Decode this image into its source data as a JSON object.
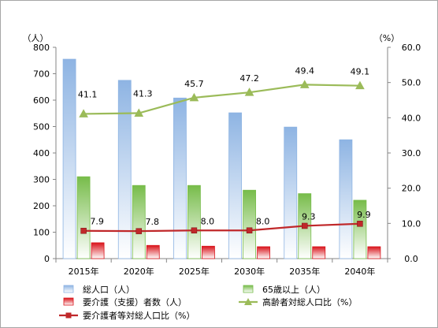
{
  "chart_data": {
    "type": "bar",
    "categories": [
      "2015年",
      "2020年",
      "2025年",
      "2030年",
      "2035年",
      "2040年"
    ],
    "y_left": {
      "unit": "（人）",
      "range": [
        0,
        800
      ],
      "ticks": [
        "0",
        "100",
        "200",
        "300",
        "400",
        "500",
        "600",
        "700",
        "800"
      ]
    },
    "y_right": {
      "unit": "（%）",
      "range": [
        0,
        60
      ],
      "ticks": [
        "0.0",
        "10.0",
        "20.0",
        "30.0",
        "40.0",
        "50.0",
        "60.0"
      ]
    },
    "series": [
      {
        "name": "総人口（人）",
        "kind": "bar",
        "axis": "left",
        "color": "#8eb4e3",
        "values": [
          755,
          675,
          608,
          552,
          498,
          450
        ]
      },
      {
        "name": "65歳以上（人）",
        "kind": "bar",
        "axis": "left",
        "color": "#77bc4a",
        "values": [
          310,
          277,
          277,
          259,
          246,
          221
        ]
      },
      {
        "name": "要介護（支援）者数（人）",
        "kind": "bar",
        "axis": "left",
        "color": "#d9141b",
        "values": [
          60,
          50,
          47,
          45,
          45,
          45
        ]
      },
      {
        "name": "高齢者対総人口比（%）",
        "kind": "line",
        "axis": "right",
        "color": "#9bbb59",
        "marker": "triangle",
        "values": [
          41.1,
          41.3,
          45.7,
          47.2,
          49.4,
          49.1
        ],
        "labels": [
          "41.1",
          "41.3",
          "45.7",
          "47.2",
          "49.4",
          "49.1"
        ]
      },
      {
        "name": "要介護者等対総人口比（%）",
        "kind": "line",
        "axis": "right",
        "color": "#c0282a",
        "marker": "square",
        "values": [
          7.9,
          7.8,
          8.0,
          8.0,
          9.3,
          9.9
        ],
        "labels": [
          "7.9",
          "7.8",
          "8.0",
          "8.0",
          "9.3",
          "9.9"
        ]
      }
    ],
    "grid": false,
    "legend_position": "bottom"
  }
}
